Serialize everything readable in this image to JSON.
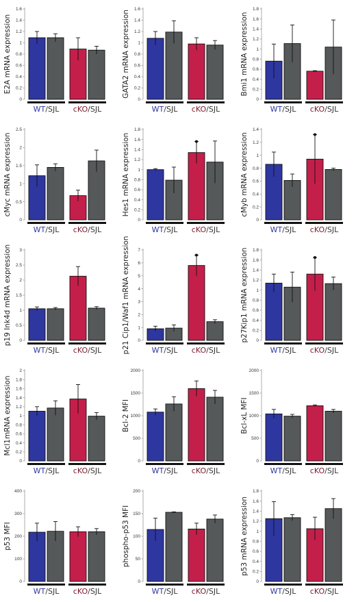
{
  "group_labels": {
    "wt": "WT",
    "cko": "cKO",
    "sep": "/",
    "ctrl": "SJL"
  },
  "colors": {
    "wt": "#2e36a0",
    "cko": "#c41f4a",
    "sjl": "#55595a",
    "wt_text": "#2e36a0",
    "cko_text": "#7a1a2e",
    "sjl_text": "#333333"
  },
  "chart_data": [
    {
      "type": "bar",
      "ylabel": "E2A mRNA expression",
      "ylim": [
        0,
        1.6
      ],
      "ticks": [
        0,
        0.2,
        0.4,
        0.6,
        0.8,
        1,
        1.2,
        1.4,
        1.6
      ],
      "values": [
        1.09,
        1.09,
        0.89,
        0.87
      ],
      "errors": [
        0.11,
        0.07,
        0.2,
        0.07
      ],
      "markers": [
        false,
        false,
        false,
        false
      ]
    },
    {
      "type": "bar",
      "ylabel": "GATA2 mRNA expression",
      "ylim": [
        0,
        1.6
      ],
      "ticks": [
        0,
        0.2,
        0.4,
        0.6,
        0.8,
        1,
        1.2,
        1.4,
        1.6
      ],
      "values": [
        1.08,
        1.19,
        0.98,
        0.96
      ],
      "errors": [
        0.12,
        0.2,
        0.11,
        0.08
      ],
      "markers": [
        false,
        false,
        false,
        false
      ]
    },
    {
      "type": "bar",
      "ylabel": "Bmi1 mRNA expression",
      "ylim": [
        0,
        1.8
      ],
      "ticks": [
        0,
        0.2,
        0.4,
        0.6,
        0.8,
        1,
        1.2,
        1.4,
        1.6,
        1.8
      ],
      "values": [
        0.76,
        1.11,
        0.56,
        1.04
      ],
      "errors": [
        0.34,
        0.37,
        0.01,
        0.54
      ],
      "markers": [
        false,
        false,
        false,
        false
      ]
    },
    {
      "type": "bar",
      "ylabel": "cMyc mRNA expression",
      "ylim": [
        0,
        2.5
      ],
      "ticks": [
        0,
        0.5,
        1,
        1.5,
        2,
        2.5
      ],
      "values": [
        1.22,
        1.45,
        0.67,
        1.63
      ],
      "errors": [
        0.3,
        0.1,
        0.15,
        0.3
      ],
      "markers": [
        false,
        false,
        false,
        false
      ]
    },
    {
      "type": "bar",
      "ylabel": "Hes1 mRNA expression",
      "ylim": [
        0,
        1.8
      ],
      "ticks": [
        0,
        0.2,
        0.4,
        0.6,
        0.8,
        1,
        1.2,
        1.4,
        1.6,
        1.8
      ],
      "values": [
        1.0,
        0.79,
        1.34,
        1.15
      ],
      "errors": [
        0.02,
        0.26,
        0.22,
        0.42
      ],
      "markers": [
        false,
        false,
        true,
        false
      ]
    },
    {
      "type": "bar",
      "ylabel": "cMyb mRNA expression",
      "ylim": [
        0,
        1.4
      ],
      "ticks": [
        0,
        0.2,
        0.4,
        0.6,
        0.8,
        1,
        1.2,
        1.4
      ],
      "values": [
        0.86,
        0.61,
        0.94,
        0.78
      ],
      "errors": [
        0.19,
        0.1,
        0.38,
        0.02
      ],
      "markers": [
        false,
        false,
        true,
        false
      ]
    },
    {
      "type": "bar",
      "ylabel": "p19 Ink4d mRNA expression",
      "ylim": [
        0,
        3
      ],
      "ticks": [
        0,
        0.5,
        1,
        1.5,
        2,
        2.5,
        3
      ],
      "values": [
        1.05,
        1.05,
        2.13,
        1.07
      ],
      "errors": [
        0.06,
        0.04,
        0.32,
        0.05
      ],
      "markers": [
        false,
        false,
        false,
        false
      ]
    },
    {
      "type": "bar",
      "ylabel": "p21 Cip1/Waf1 mRNA expression",
      "ylim": [
        0,
        7
      ],
      "ticks": [
        0,
        1,
        2,
        3,
        4,
        5,
        6,
        7
      ],
      "values": [
        0.9,
        0.95,
        5.8,
        1.45
      ],
      "errors": [
        0.2,
        0.25,
        0.8,
        0.15
      ],
      "markers": [
        false,
        false,
        true,
        false
      ]
    },
    {
      "type": "bar",
      "ylabel": "p27Kip1 mRNA expression",
      "ylim": [
        0,
        1.8
      ],
      "ticks": [
        0,
        0.2,
        0.4,
        0.6,
        0.8,
        1,
        1.2,
        1.4,
        1.6,
        1.8
      ],
      "values": [
        1.14,
        1.06,
        1.32,
        1.13
      ],
      "errors": [
        0.18,
        0.3,
        0.33,
        0.13
      ],
      "markers": [
        false,
        false,
        true,
        false
      ]
    },
    {
      "type": "bar",
      "ylabel": "Mcl1mRNA expression",
      "ylim": [
        0,
        2
      ],
      "ticks": [
        0,
        0.2,
        0.4,
        0.6,
        0.8,
        1,
        1.2,
        1.4,
        1.6,
        1.8,
        2
      ],
      "values": [
        1.1,
        1.17,
        1.37,
        0.99
      ],
      "errors": [
        0.1,
        0.16,
        0.32,
        0.08
      ],
      "markers": [
        false,
        false,
        false,
        false
      ]
    },
    {
      "type": "bar",
      "ylabel": "Bcl-2 MFI",
      "ylim": [
        0,
        2000
      ],
      "ticks": [
        0,
        500,
        1000,
        1500,
        2000
      ],
      "values": [
        1080,
        1260,
        1600,
        1410
      ],
      "errors": [
        70,
        160,
        170,
        150
      ],
      "markers": [
        false,
        false,
        false,
        false
      ]
    },
    {
      "type": "bar",
      "ylabel": "Bcl-xL MFI",
      "ylim": [
        0,
        2000
      ],
      "ticks": [
        0,
        500,
        1000,
        1500,
        2000
      ],
      "values": [
        1040,
        990,
        1220,
        1100
      ],
      "errors": [
        100,
        40,
        20,
        40
      ],
      "markers": [
        false,
        false,
        false,
        false
      ]
    },
    {
      "type": "bar",
      "ylabel": "p53 MFI",
      "ylim": [
        0,
        400
      ],
      "ticks": [
        0,
        100,
        200,
        300,
        400
      ],
      "values": [
        218,
        222,
        220,
        220
      ],
      "errors": [
        40,
        43,
        22,
        14
      ],
      "markers": [
        false,
        false,
        false,
        false
      ]
    },
    {
      "type": "bar",
      "ylabel": "phospho-p53 MFI",
      "ylim": [
        0,
        200
      ],
      "ticks": [
        0,
        50,
        100,
        150,
        200
      ],
      "values": [
        115,
        153,
        116,
        138
      ],
      "errors": [
        25,
        1,
        13,
        9
      ],
      "markers": [
        false,
        false,
        false,
        false
      ]
    },
    {
      "type": "bar",
      "ylabel": "p53 mRNA expression",
      "ylim": [
        0,
        1.8
      ],
      "ticks": [
        0,
        0.2,
        0.4,
        0.6,
        0.8,
        1,
        1.2,
        1.4,
        1.6,
        1.8
      ],
      "values": [
        1.25,
        1.27,
        1.05,
        1.45
      ],
      "errors": [
        0.34,
        0.06,
        0.23,
        0.2
      ],
      "markers": [
        false,
        false,
        false,
        false
      ]
    }
  ]
}
